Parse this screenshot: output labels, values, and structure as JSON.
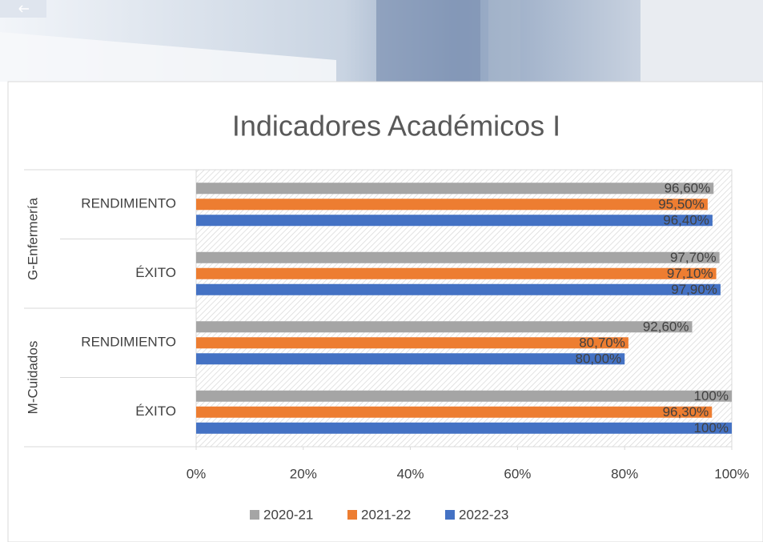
{
  "chart_data": {
    "type": "bar",
    "orientation": "horizontal",
    "title": "Indicadores Académicos I",
    "groups": [
      {
        "name": "G-Enfermería",
        "categories": [
          "RENDIMIENTO",
          "ÉXITO"
        ]
      },
      {
        "name": "M-Cuidados",
        "categories": [
          "RENDIMIENTO",
          "ÉXITO"
        ]
      }
    ],
    "series": [
      {
        "name": "2020-21",
        "color": "#a5a5a5",
        "values": [
          96.6,
          97.7,
          92.6,
          100
        ],
        "value_labels": [
          "96,60%",
          "97,70%",
          "92,60%",
          "100%"
        ]
      },
      {
        "name": "2021-22",
        "color": "#ed7d31",
        "values": [
          95.5,
          97.1,
          80.7,
          96.3
        ],
        "value_labels": [
          "95,50%",
          "97,10%",
          "80,70%",
          "96,30%"
        ]
      },
      {
        "name": "2022-23",
        "color": "#4472c4",
        "values": [
          96.4,
          97.9,
          80.0,
          100
        ],
        "value_labels": [
          "96,40%",
          "97,90%",
          "80,00%",
          "100%"
        ]
      }
    ],
    "xlim": [
      0,
      100
    ],
    "xticks": [
      {
        "value": 0,
        "label": "0%"
      },
      {
        "value": 20,
        "label": "20%"
      },
      {
        "value": 40,
        "label": "40%"
      },
      {
        "value": 60,
        "label": "60%"
      },
      {
        "value": 80,
        "label": "80%"
      },
      {
        "value": 100,
        "label": "100%"
      }
    ],
    "legend": "bottom"
  }
}
